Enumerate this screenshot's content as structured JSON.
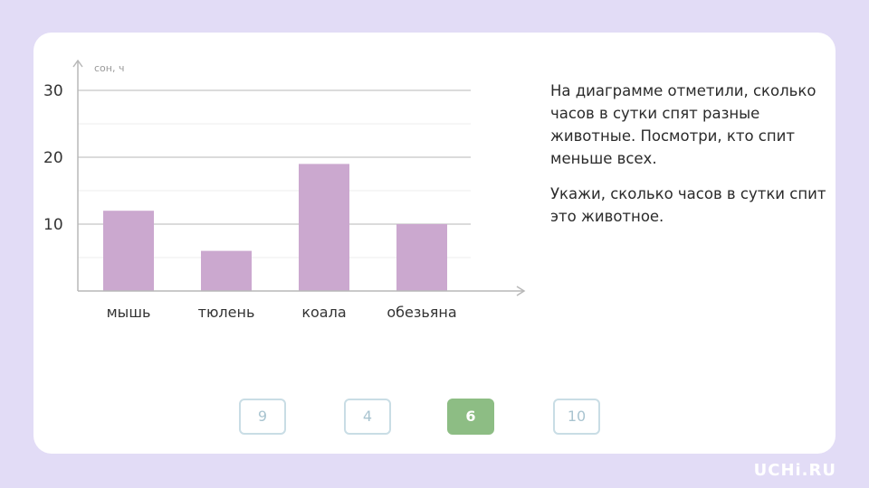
{
  "chart_data": {
    "type": "bar",
    "ylabel": "сон, ч",
    "ylim": [
      0,
      30
    ],
    "yticks": [
      10,
      20,
      30
    ],
    "categories": [
      "мышь",
      "тюлень",
      "коала",
      "обезьяна"
    ],
    "values": [
      12,
      6,
      19,
      10
    ],
    "bar_color": "#cba8cf",
    "grid": true
  },
  "question": {
    "paragraph1": "На диаграмме отметили, сколько часов в сутки спят разные животные. Посмотри, кто спит меньше всех.",
    "paragraph2": "Укажи, сколько часов в сутки спит это животное."
  },
  "answers": [
    {
      "label": "9",
      "selected": false
    },
    {
      "label": "4",
      "selected": false
    },
    {
      "label": "6",
      "selected": true
    },
    {
      "label": "10",
      "selected": false
    }
  ],
  "brand": "UCHi.RU"
}
